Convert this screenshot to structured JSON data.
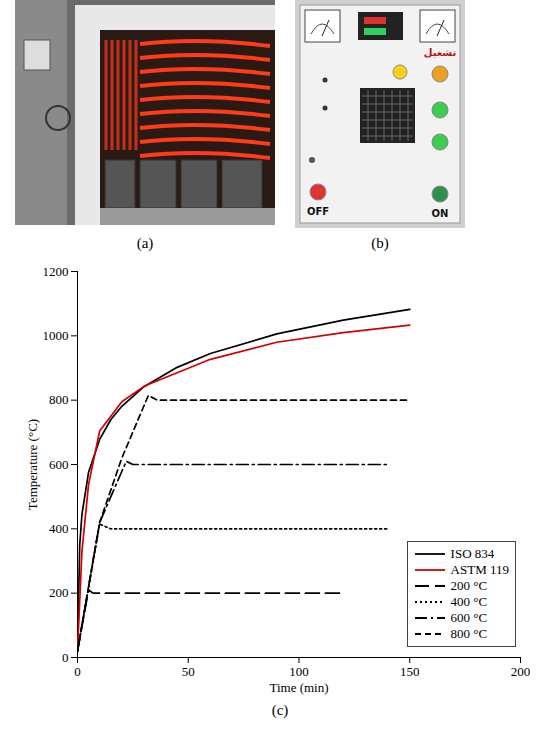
{
  "panels": [
    {
      "label": "(a)"
    },
    {
      "label": "(b)",
      "texts": [
        "تشغيل",
        "OFF",
        "ON"
      ]
    },
    {
      "label": "(c)"
    }
  ],
  "chart_data": {
    "type": "line",
    "x_label": "Time (min)",
    "y_label": "Temperature (°C)",
    "xlim": [
      0,
      200
    ],
    "xticks": [
      0,
      50,
      100,
      150,
      200
    ],
    "ylim": [
      0,
      1200
    ],
    "yticks": [
      0,
      200,
      400,
      600,
      800,
      1000,
      1200
    ],
    "grid": false,
    "legend": "bottom right",
    "series": [
      {
        "name": "ISO 834",
        "color": "#000000",
        "line_style": "solid",
        "x": [
          0,
          1,
          2,
          5,
          10,
          15,
          20,
          30,
          45,
          60,
          90,
          120,
          150
        ],
        "values": [
          20,
          349,
          445,
          576,
          678,
          739,
          781,
          842,
          902,
          945,
          1006,
          1049,
          1082
        ]
      },
      {
        "name": "ASTM 119",
        "color": "#d00000",
        "line_style": "solid",
        "x": [
          0,
          2,
          5,
          10,
          20,
          30,
          45,
          60,
          90,
          120,
          150
        ],
        "values": [
          20,
          330,
          538,
          704,
          795,
          843,
          885,
          927,
          980,
          1010,
          1033
        ]
      },
      {
        "name": "200 °C",
        "color": "#000000",
        "line_style": "long_dash",
        "x": [
          0,
          5,
          7,
          120
        ],
        "values": [
          20,
          210,
          200,
          200
        ]
      },
      {
        "name": "400 °C",
        "color": "#000000",
        "line_style": "dotted",
        "x": [
          0,
          10,
          15,
          140
        ],
        "values": [
          20,
          415,
          400,
          400
        ]
      },
      {
        "name": "600 °C",
        "color": "#000000",
        "line_style": "dash_dot",
        "x": [
          0,
          10,
          22,
          25,
          140
        ],
        "values": [
          20,
          420,
          610,
          600,
          600
        ]
      },
      {
        "name": "800 °C",
        "color": "#000000",
        "line_style": "dashed",
        "x": [
          0,
          10,
          20,
          32,
          36,
          150
        ],
        "values": [
          20,
          420,
          620,
          815,
          800,
          800
        ]
      }
    ]
  }
}
